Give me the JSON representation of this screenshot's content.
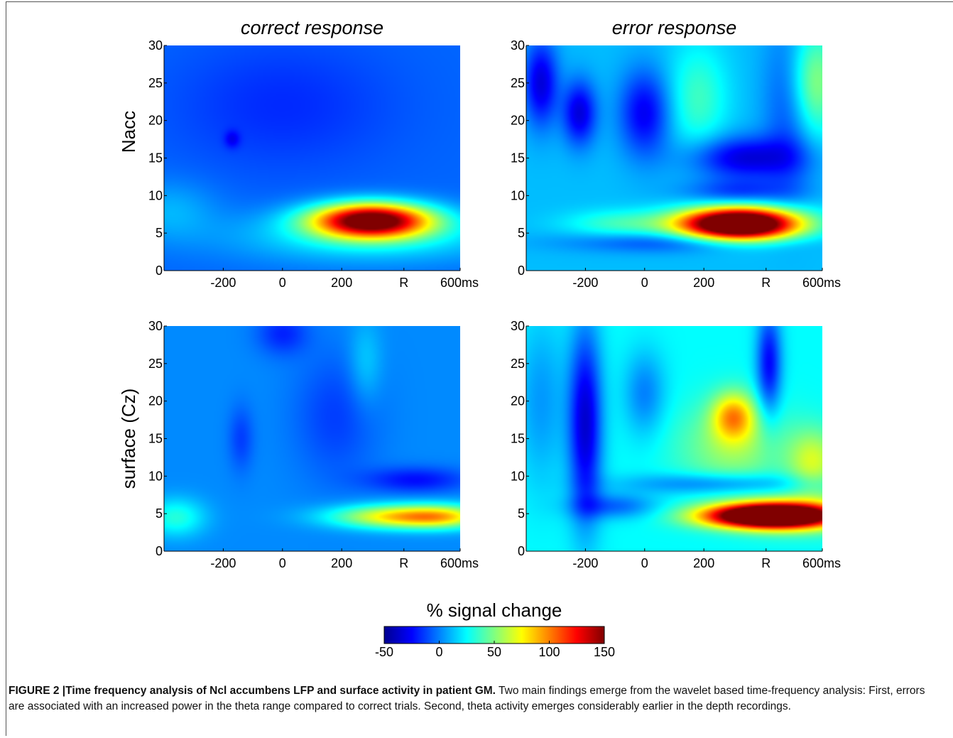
{
  "chart_data": {
    "type": "heatmap",
    "columns": [
      "correct response",
      "error response"
    ],
    "rows": [
      "Nacc",
      "surface (Cz)"
    ],
    "x_ticks": [
      "-200",
      "0",
      "200",
      "R",
      "600ms"
    ],
    "y_ticks": [
      "0",
      "5",
      "10",
      "15",
      "20",
      "25",
      "30"
    ],
    "ylim": [
      0,
      30
    ],
    "colorbar": {
      "title": "% signal change",
      "ticks": [
        "-50",
        "0",
        "50",
        "100",
        "150"
      ],
      "range": [
        -50,
        150
      ],
      "colors": [
        "#00008f",
        "#0000ff",
        "#0080ff",
        "#00ffff",
        "#80ff80",
        "#ffff00",
        "#ff8000",
        "#ff0000",
        "#800000"
      ]
    },
    "panels": [
      {
        "row": "Nacc",
        "column": "correct response",
        "background": -5,
        "blobs": [
          {
            "t": 300,
            "f": 6.7,
            "st": 140,
            "sf": 1.6,
            "v": 165
          },
          {
            "t": 300,
            "f": 4.5,
            "st": 320,
            "sf": 2.4,
            "v": 30
          },
          {
            "t": -380,
            "f": 8.0,
            "st": 110,
            "sf": 2.8,
            "v": 15
          },
          {
            "t": 0,
            "f": 22,
            "st": 260,
            "sf": 6,
            "v": -12
          },
          {
            "t": -170,
            "f": 17.5,
            "st": 18,
            "sf": 0.8,
            "v": -18
          }
        ]
      },
      {
        "row": "Nacc",
        "column": "error response",
        "background": 12,
        "blobs": [
          {
            "t": 320,
            "f": 6.2,
            "st": 140,
            "sf": 1.5,
            "v": 210
          },
          {
            "t": -80,
            "f": 6.2,
            "st": 130,
            "sf": 1.3,
            "v": 25
          },
          {
            "t": -350,
            "f": 25,
            "st": 40,
            "sf": 4,
            "v": -45
          },
          {
            "t": -220,
            "f": 21,
            "st": 40,
            "sf": 3,
            "v": -45
          },
          {
            "t": 0,
            "f": 21,
            "st": 60,
            "sf": 4,
            "v": -40
          },
          {
            "t": 340,
            "f": 15,
            "st": 130,
            "sf": 2,
            "v": -45
          },
          {
            "t": 320,
            "f": 10.5,
            "st": 130,
            "sf": 1.2,
            "v": -25
          },
          {
            "t": 180,
            "f": 23,
            "st": 70,
            "sf": 5,
            "v": 25
          },
          {
            "t": 490,
            "f": 22,
            "st": 60,
            "sf": 8,
            "v": -25
          },
          {
            "t": 570,
            "f": 25,
            "st": 60,
            "sf": 5,
            "v": 45
          },
          {
            "t": 100,
            "f": 3.8,
            "st": 250,
            "sf": 1.0,
            "v": -25
          }
        ]
      },
      {
        "row": "surface (Cz)",
        "column": "correct response",
        "background": 2,
        "blobs": [
          {
            "t": 400,
            "f": 4.6,
            "st": 160,
            "sf": 1.1,
            "v": 80
          },
          {
            "t": 550,
            "f": 4.6,
            "st": 100,
            "sf": 1.1,
            "v": 40
          },
          {
            "t": -360,
            "f": 4.5,
            "st": 70,
            "sf": 1.8,
            "v": 30
          },
          {
            "t": 450,
            "f": 9.5,
            "st": 120,
            "sf": 1.2,
            "v": -25
          },
          {
            "t": 180,
            "f": 18,
            "st": 100,
            "sf": 6,
            "v": -15
          },
          {
            "t": -140,
            "f": 15,
            "st": 30,
            "sf": 3,
            "v": -15
          },
          {
            "t": 0,
            "f": 29,
            "st": 60,
            "sf": 2,
            "v": -20
          },
          {
            "t": 280,
            "f": 25,
            "st": 40,
            "sf": 4,
            "v": 15
          }
        ]
      },
      {
        "row": "surface (Cz)",
        "column": "error response",
        "background": 25,
        "blobs": [
          {
            "t": 420,
            "f": 4.7,
            "st": 150,
            "sf": 1.1,
            "v": 200
          },
          {
            "t": 520,
            "f": 5.0,
            "st": 140,
            "sf": 1.8,
            "v": 40
          },
          {
            "t": 300,
            "f": 18,
            "st": 50,
            "sf": 2.2,
            "v": 60
          },
          {
            "t": 300,
            "f": 14,
            "st": 130,
            "sf": 4,
            "v": 30
          },
          {
            "t": 570,
            "f": 12,
            "st": 60,
            "sf": 3,
            "v": 40
          },
          {
            "t": -200,
            "f": 17,
            "st": 40,
            "sf": 9,
            "v": -60
          },
          {
            "t": 420,
            "f": 25,
            "st": 30,
            "sf": 5,
            "v": -50
          },
          {
            "t": -350,
            "f": 20,
            "st": 60,
            "sf": 8,
            "v": -20
          },
          {
            "t": 0,
            "f": 21,
            "st": 50,
            "sf": 4,
            "v": -25
          },
          {
            "t": 250,
            "f": 9,
            "st": 220,
            "sf": 1.0,
            "v": -30
          },
          {
            "t": -100,
            "f": 6,
            "st": 100,
            "sf": 1.2,
            "v": -30
          }
        ]
      }
    ]
  },
  "caption": {
    "label": "FIGURE 2 |",
    "title": "Time frequency analysis of Ncl accumbens LFP and surface activity in patient GM.",
    "body": " Two main findings emerge from the wavelet based time-frequency analysis: First, errors are associated with an increased power in the theta range compared to correct trials. Second, theta activity emerges considerably earlier in the depth recordings."
  },
  "colors": {
    "frame": "#555555",
    "text": "#000000"
  }
}
